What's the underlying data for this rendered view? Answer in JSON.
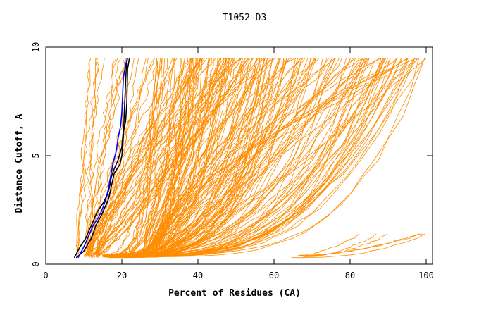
{
  "chart_data": {
    "type": "line",
    "title": "T1052-D3",
    "xlabel": "Percent of Residues (CA)",
    "ylabel": "Distance Cutoff, A",
    "xlim": [
      0,
      100
    ],
    "ylim": [
      0,
      10
    ],
    "x_ticks": [
      "0",
      "20",
      "40",
      "60",
      "80",
      "100"
    ],
    "y_ticks": [
      "0",
      "5",
      "10"
    ],
    "grid": false,
    "legend": "none",
    "colors": {
      "models": "#ff8c00",
      "highlight_black": "#000000",
      "highlight_blue": "#0000ff",
      "axes": "#000000"
    },
    "series": [
      {
        "color": "#000000",
        "points": [
          [
            7.5,
            0.3
          ],
          [
            9,
            0.8
          ],
          [
            10.5,
            1.2
          ],
          [
            12,
            1.8
          ],
          [
            13.5,
            2.4
          ],
          [
            15,
            2.8
          ],
          [
            16.2,
            3.2
          ],
          [
            16.8,
            3.6
          ],
          [
            17.2,
            4.0
          ],
          [
            18,
            4.4
          ],
          [
            19,
            4.8
          ],
          [
            20,
            5.4
          ],
          [
            20.3,
            6.0
          ],
          [
            21,
            6.6
          ],
          [
            21.3,
            7.4
          ],
          [
            21.4,
            8.2
          ],
          [
            21.5,
            9.0
          ],
          [
            22,
            9.5
          ]
        ]
      },
      {
        "color": "#000000",
        "points": [
          [
            8,
            0.3
          ],
          [
            10,
            0.6
          ],
          [
            12,
            1.2
          ],
          [
            13.2,
            1.8
          ],
          [
            14.5,
            2.2
          ],
          [
            15.5,
            2.6
          ],
          [
            16.5,
            3.0
          ],
          [
            17,
            3.4
          ],
          [
            17.5,
            3.8
          ],
          [
            18,
            4.2
          ],
          [
            19.5,
            4.6
          ],
          [
            20,
            5.0
          ],
          [
            20.3,
            5.6
          ],
          [
            20.5,
            6.2
          ],
          [
            20.6,
            6.8
          ],
          [
            20.8,
            7.6
          ],
          [
            21,
            8.4
          ],
          [
            21.2,
            9.2
          ],
          [
            21.5,
            9.5
          ]
        ]
      },
      {
        "color": "#0000ff",
        "points": [
          [
            8.5,
            0.3
          ],
          [
            10,
            0.8
          ],
          [
            11.5,
            1.4
          ],
          [
            12.5,
            1.8
          ],
          [
            14,
            2.2
          ],
          [
            15,
            2.6
          ],
          [
            15.8,
            3.0
          ],
          [
            16.5,
            3.5
          ],
          [
            17,
            4.0
          ],
          [
            17.6,
            4.6
          ],
          [
            18.5,
            5.2
          ],
          [
            19,
            5.8
          ],
          [
            19.7,
            6.4
          ],
          [
            20,
            7.0
          ],
          [
            20.2,
            7.8
          ],
          [
            20.4,
            8.6
          ],
          [
            21,
            9.2
          ],
          [
            21.5,
            9.5
          ]
        ]
      }
    ],
    "band_series": [
      {
        "x_start": 7.5,
        "x_end": 22,
        "steepness": 1.0,
        "count": 6,
        "cap": 9.5
      },
      {
        "x_start": 10,
        "x_end": 60,
        "steepness": 1.0,
        "count": 45,
        "cap": 9.5
      },
      {
        "x_start": 25,
        "x_end": 100,
        "steepness": 1.0,
        "count": 55,
        "cap": 9.5
      },
      {
        "x_start": 15,
        "x_end": 100,
        "steepness": 3.5,
        "count": 110,
        "cap": 9.5
      },
      {
        "x_start": 65,
        "x_end": 100,
        "steepness": 2.0,
        "count": 6,
        "cap": 1.4
      }
    ]
  }
}
